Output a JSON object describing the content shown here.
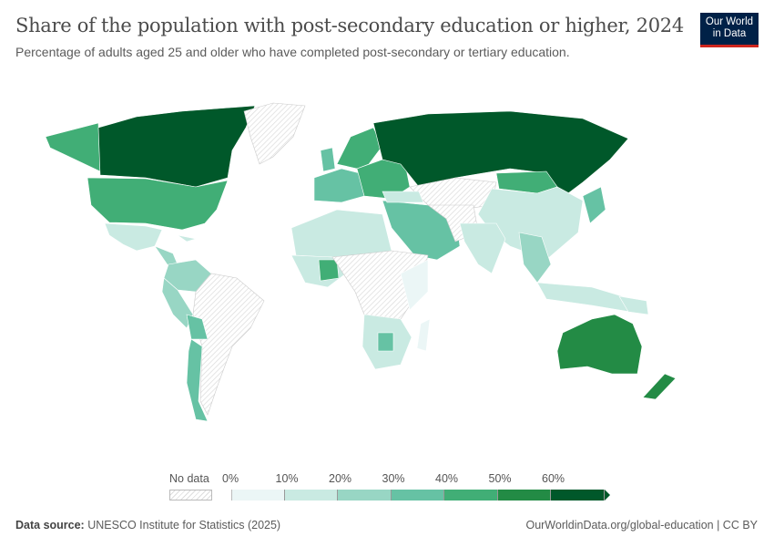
{
  "header": {
    "title": "Share of the population with post-secondary education or higher, 2024",
    "subtitle": "Percentage of adults aged 25 and older who have completed post-secondary or tertiary education.",
    "logo_line1": "Our World",
    "logo_line2": "in Data"
  },
  "legend": {
    "no_data_label": "No data",
    "ticks": [
      "0%",
      "10%",
      "20%",
      "30%",
      "40%",
      "50%",
      "60%"
    ],
    "bins": [
      {
        "range": "0-10%",
        "color": "#ebf6f6"
      },
      {
        "range": "10-20%",
        "color": "#c9eae2"
      },
      {
        "range": "20-30%",
        "color": "#98d6c4"
      },
      {
        "range": "30-40%",
        "color": "#66c2a4"
      },
      {
        "range": "40-50%",
        "color": "#41ae76"
      },
      {
        "range": "50-60%",
        "color": "#238b45"
      },
      {
        "range": ">60%",
        "color": "#00582a"
      }
    ]
  },
  "footer": {
    "source_label": "Data source:",
    "source": "UNESCO Institute for Statistics (2025)",
    "url": "OurWorldinData.org/global-education | CC BY"
  }
}
